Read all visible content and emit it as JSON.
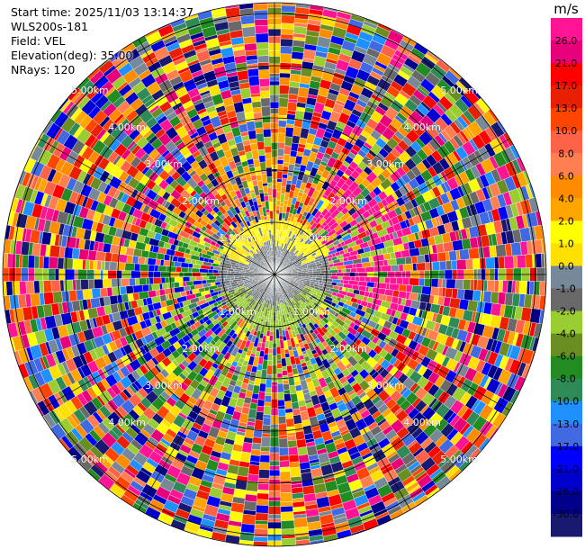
{
  "header": {
    "start_time": "Start time: 2025/11/03 13:14:37",
    "instrument": "WLS200s-181",
    "field": "Field: VEL",
    "elevation": "Elevation(deg): 35.00",
    "nrays": "NRays: 120"
  },
  "range_rings": [
    "1.00km",
    "2.00km",
    "3.00km",
    "4.00km",
    "5.00km"
  ],
  "colorbar": {
    "unit": "m/s",
    "ticks": [
      "26.0",
      "21.0",
      "17.0",
      "13.0",
      "10.0",
      "8.0",
      "6.0",
      "4.0",
      "2.0",
      "1.0",
      "0.0",
      "-1.0",
      "-2.0",
      "-4.0",
      "-6.0",
      "-8.0",
      "-10.0",
      "-13.0",
      "-17.0",
      "-21.0",
      "-26.0",
      "-30.0"
    ],
    "colors": [
      "#ff1493",
      "#e8007a",
      "#ff0000",
      "#e82000",
      "#ff4500",
      "#ff6347",
      "#ff7f50",
      "#ff8c00",
      "#ffa500",
      "#ffff00",
      "#ffe000",
      "#778899",
      "#696969",
      "#9acd32",
      "#6b8e23",
      "#228b22",
      "#2e8b57",
      "#1e90ff",
      "#4169e1",
      "#0000ff",
      "#0000cd",
      "#00008b",
      "#191970"
    ]
  }
}
